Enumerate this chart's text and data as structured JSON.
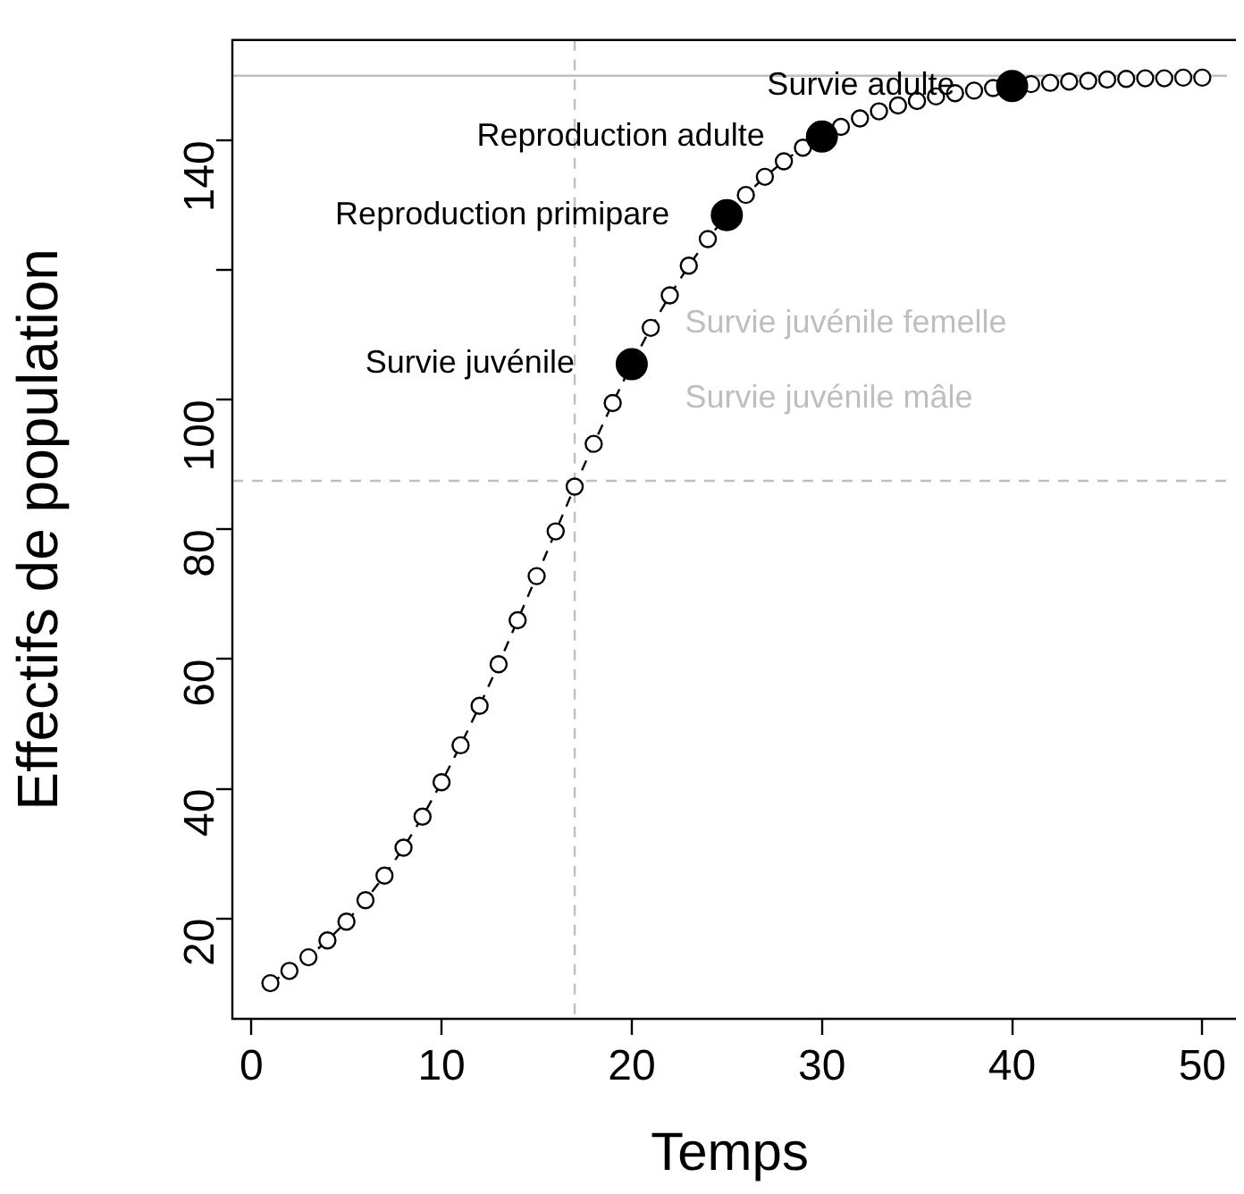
{
  "chart_data": {
    "type": "line",
    "xlabel": "Temps",
    "ylabel": "Effectifs de population",
    "xlim": [
      -1,
      51.3
    ],
    "xticks": [
      0,
      10,
      20,
      30,
      40,
      50
    ],
    "ylim": [
      4.5,
      155.5
    ],
    "yticks": [
      20,
      40,
      60,
      80,
      100,
      {
        "value": 120,
        "label": null
      },
      140
    ],
    "grid": false,
    "legend": false,
    "series": [
      {
        "color": "#000000",
        "marker": "circle",
        "line_style": "dashed",
        "x": [
          1,
          2,
          3,
          4,
          5,
          6,
          7,
          8,
          9,
          10,
          11,
          12,
          13,
          14,
          15,
          16,
          17,
          18,
          19,
          20,
          21,
          22,
          23,
          24,
          25,
          26,
          27,
          28,
          29,
          30,
          31,
          32,
          33,
          34,
          35,
          36,
          37,
          38,
          39,
          40,
          41,
          42,
          43,
          44,
          45,
          46,
          47,
          48,
          49,
          50
        ],
        "values": [
          10.0,
          11.9,
          14.0,
          16.6,
          19.5,
          22.8,
          26.6,
          30.9,
          35.7,
          41.0,
          46.7,
          52.8,
          59.2,
          66.0,
          72.8,
          79.7,
          86.6,
          93.2,
          99.5,
          105.5,
          111.1,
          116.1,
          120.7,
          124.8,
          128.5,
          131.6,
          134.4,
          136.8,
          138.9,
          140.6,
          142.1,
          143.4,
          144.5,
          145.4,
          146.1,
          146.8,
          147.3,
          147.7,
          148.1,
          148.4,
          148.7,
          148.9,
          149.1,
          149.2,
          149.4,
          149.5,
          149.6,
          149.6,
          149.7,
          149.7
        ]
      },
      {
        "type": "scatter",
        "color": "#000000",
        "marker": "circle",
        "x": [
          20,
          25,
          30,
          40
        ],
        "values": [
          105.5,
          128.5,
          140.6,
          148.4
        ]
      }
    ],
    "ref_lines": [
      {
        "axis": "y",
        "value": 150,
        "color": "#bebebe",
        "line_style": "solid"
      },
      {
        "axis": "y",
        "value": 87.5,
        "color": "#bebebe",
        "line_style": "dashed"
      },
      {
        "axis": "x",
        "value": 17,
        "color": "#bebebe",
        "line_style": "dashed"
      }
    ],
    "annotations": [
      {
        "text": "Survie adulte",
        "x": 40,
        "y": 148.4
      },
      {
        "text": "Reproduction adulte",
        "x": 30,
        "y": 140.6
      },
      {
        "text": "Reproduction primipare",
        "x": 25,
        "y": 128.5
      },
      {
        "text": "Survie juvénile",
        "x": 20,
        "y": 105.5
      },
      "Survie juvénile femelle",
      "Survie juvénile mâle"
    ]
  }
}
